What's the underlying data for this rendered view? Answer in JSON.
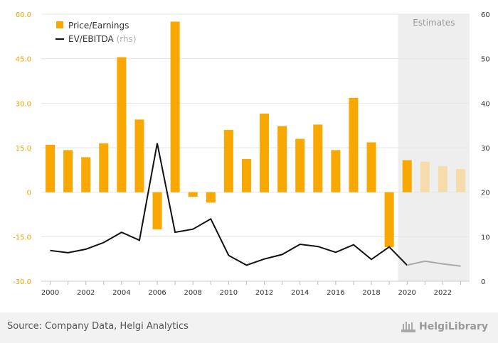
{
  "chart_data": {
    "type": "bar+line",
    "categories": [
      2000,
      2001,
      2002,
      2003,
      2004,
      2005,
      2006,
      2007,
      2008,
      2009,
      2010,
      2011,
      2012,
      2013,
      2014,
      2015,
      2016,
      2017,
      2018,
      2019,
      2020,
      2021,
      2022,
      2023
    ],
    "x_tick_labels": [
      "2000",
      "2002",
      "2004",
      "2006",
      "2008",
      "2010",
      "2012",
      "2014",
      "2016",
      "2018",
      "2020",
      "2022"
    ],
    "series": [
      {
        "name": "Price/Earnings",
        "type": "bar",
        "axis": "left",
        "values": [
          16.0,
          14.2,
          11.8,
          16.5,
          45.5,
          24.5,
          -12.5,
          57.5,
          -1.5,
          -3.5,
          21.0,
          11.2,
          26.5,
          22.3,
          18.0,
          22.8,
          14.2,
          31.8,
          16.8,
          -18.5,
          10.8,
          10.3,
          8.8,
          7.8
        ]
      },
      {
        "name": "EV/EBITDA",
        "name_suffix": "(rhs)",
        "type": "line",
        "axis": "right",
        "values": [
          6.9,
          6.4,
          7.2,
          8.7,
          11.0,
          9.2,
          31.0,
          11.0,
          11.7,
          14.0,
          5.8,
          3.6,
          5.0,
          6.0,
          8.3,
          7.8,
          6.5,
          8.2,
          4.9,
          7.7,
          3.6,
          4.5,
          3.9,
          3.4
        ]
      }
    ],
    "estimates_from": 2020,
    "estimates_label": "Estimates",
    "y_left": {
      "min": -30,
      "max": 60,
      "ticks": [
        "-30.0",
        "-15.0",
        "0",
        "15.0",
        "30.0",
        "45.0",
        "60.0"
      ]
    },
    "y_right": {
      "min": 0,
      "max": 60,
      "ticks": [
        "0",
        "10",
        "20",
        "30",
        "40",
        "50",
        "60"
      ]
    },
    "colors": {
      "bar": "#f8a800",
      "bar_estimate": "#f6dcaa",
      "line": "#111111",
      "line_estimate": "#a8a8a8",
      "estimate_band": "#eeeeee",
      "grid": "#e6e6e6"
    }
  },
  "footer": {
    "source": "Source: Company Data, Helgi Analytics",
    "brand": "HelgiLibrary"
  }
}
